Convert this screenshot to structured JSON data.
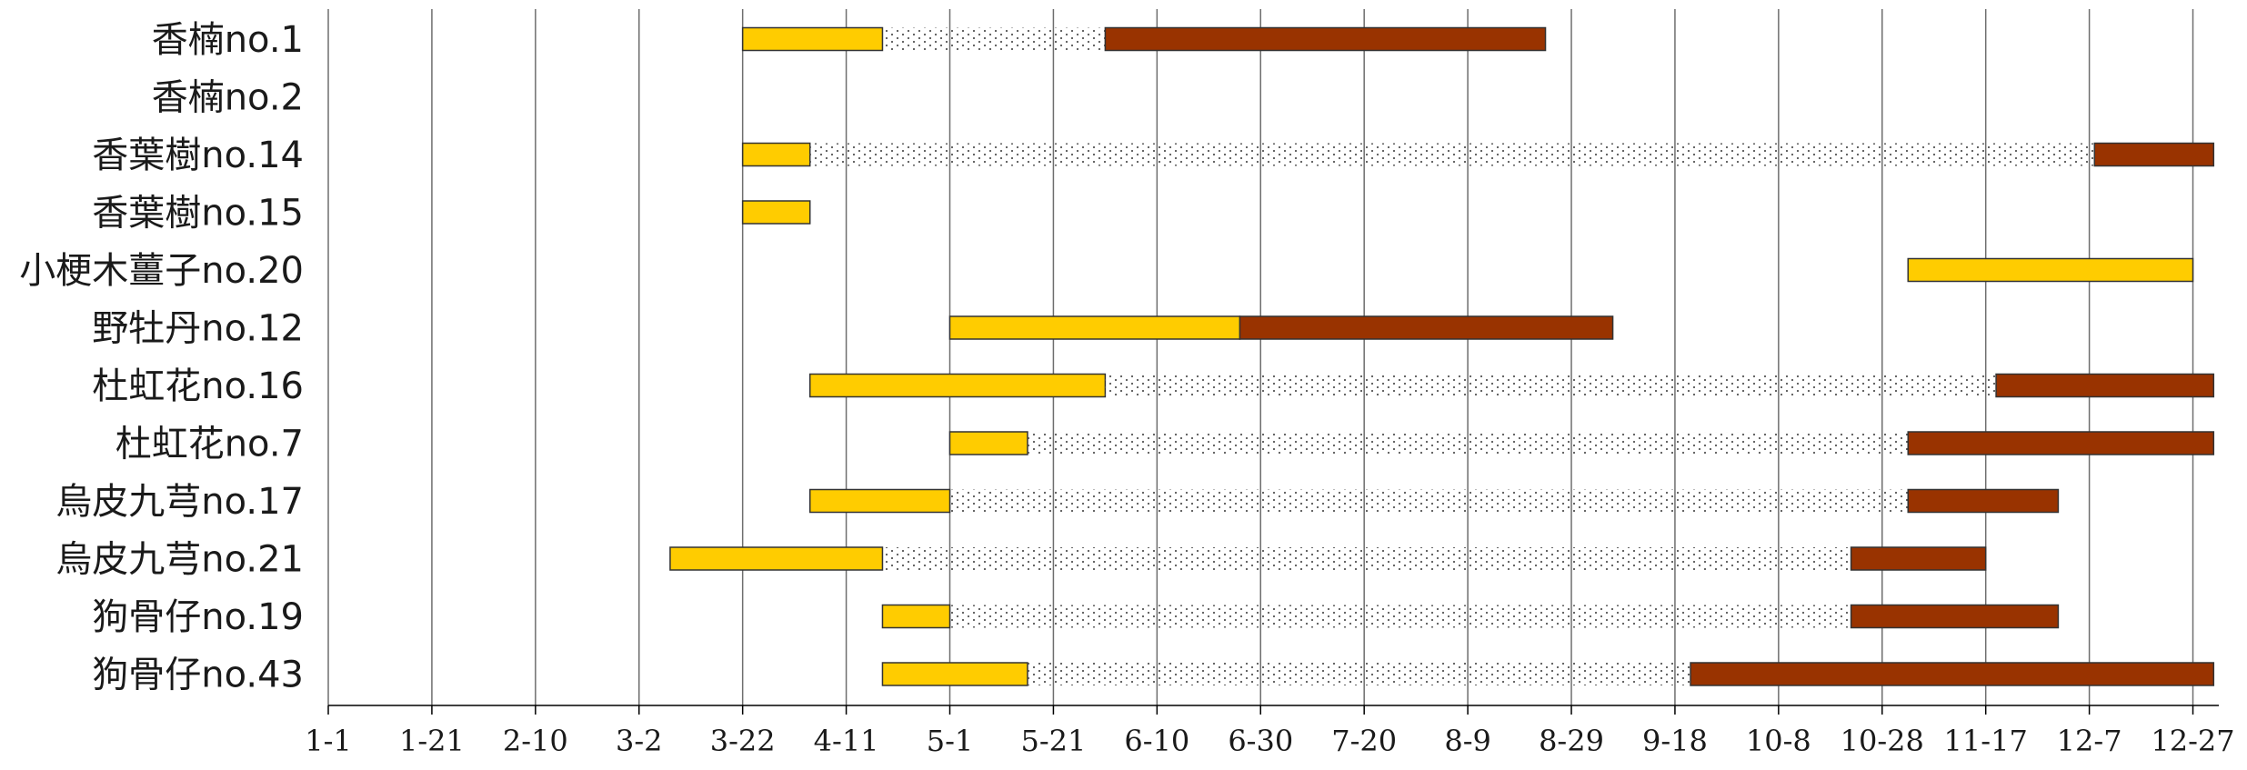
{
  "chart_data": {
    "type": "gantt",
    "x_axis": {
      "ticks": [
        "1-1",
        "1-21",
        "2-10",
        "3-2",
        "3-22",
        "4-11",
        "5-1",
        "5-21",
        "6-10",
        "6-30",
        "7-20",
        "8-9",
        "8-29",
        "9-18",
        "10-8",
        "10-28",
        "11-17",
        "12-7",
        "12-27"
      ],
      "grid": true,
      "unit": "month-day"
    },
    "colors": {
      "phase1": "#FFCC00",
      "phase2": "#993300",
      "dotted": "#555555",
      "grid": "#6e6e6e",
      "border": "#333333"
    },
    "rows": [
      {
        "label": "香楠no.1",
        "segments": [
          {
            "kind": "phase1",
            "start": "3-22",
            "end": "4-18"
          },
          {
            "kind": "dotted",
            "start": "4-18",
            "end": "5-31"
          },
          {
            "kind": "phase2",
            "start": "5-31",
            "end": "8-24"
          }
        ]
      },
      {
        "label": "香楠no.2",
        "segments": []
      },
      {
        "label": "香葉樹no.14",
        "segments": [
          {
            "kind": "phase1",
            "start": "3-22",
            "end": "4-4"
          },
          {
            "kind": "dotted",
            "start": "4-4",
            "end": "12-8"
          },
          {
            "kind": "phase2",
            "start": "12-8",
            "end": "12-31"
          }
        ]
      },
      {
        "label": "香葉樹no.15",
        "segments": [
          {
            "kind": "phase1",
            "start": "3-22",
            "end": "4-4"
          }
        ]
      },
      {
        "label": "小梗木薑子no.20",
        "segments": [
          {
            "kind": "phase1",
            "start": "11-2",
            "end": "12-27"
          }
        ]
      },
      {
        "label": "野牡丹no.12",
        "segments": [
          {
            "kind": "phase1",
            "start": "5-1",
            "end": "6-26"
          },
          {
            "kind": "phase2",
            "start": "6-26",
            "end": "9-6"
          }
        ]
      },
      {
        "label": "杜虹花no.16",
        "segments": [
          {
            "kind": "phase1",
            "start": "4-4",
            "end": "5-31"
          },
          {
            "kind": "dotted",
            "start": "5-31",
            "end": "11-19"
          },
          {
            "kind": "phase2",
            "start": "11-19",
            "end": "12-31"
          }
        ]
      },
      {
        "label": "杜虹花no.7",
        "segments": [
          {
            "kind": "phase1",
            "start": "5-1",
            "end": "5-16"
          },
          {
            "kind": "dotted",
            "start": "5-16",
            "end": "11-2"
          },
          {
            "kind": "phase2",
            "start": "11-2",
            "end": "12-31"
          }
        ]
      },
      {
        "label": "烏皮九芎no.17",
        "segments": [
          {
            "kind": "phase1",
            "start": "4-4",
            "end": "5-1"
          },
          {
            "kind": "dotted",
            "start": "5-1",
            "end": "11-2"
          },
          {
            "kind": "phase2",
            "start": "11-2",
            "end": "12-1"
          }
        ]
      },
      {
        "label": "烏皮九芎no.21",
        "segments": [
          {
            "kind": "phase1",
            "start": "3-8",
            "end": "4-18"
          },
          {
            "kind": "dotted",
            "start": "4-18",
            "end": "10-22"
          },
          {
            "kind": "phase2",
            "start": "10-22",
            "end": "11-17"
          }
        ]
      },
      {
        "label": "狗骨仔no.19",
        "segments": [
          {
            "kind": "phase1",
            "start": "4-18",
            "end": "5-1"
          },
          {
            "kind": "dotted",
            "start": "5-1",
            "end": "10-22"
          },
          {
            "kind": "phase2",
            "start": "10-22",
            "end": "12-1"
          }
        ]
      },
      {
        "label": "狗骨仔no.43",
        "segments": [
          {
            "kind": "phase1",
            "start": "4-18",
            "end": "5-16"
          },
          {
            "kind": "dotted",
            "start": "5-16",
            "end": "9-21"
          },
          {
            "kind": "phase2",
            "start": "9-21",
            "end": "12-31"
          }
        ]
      }
    ]
  }
}
